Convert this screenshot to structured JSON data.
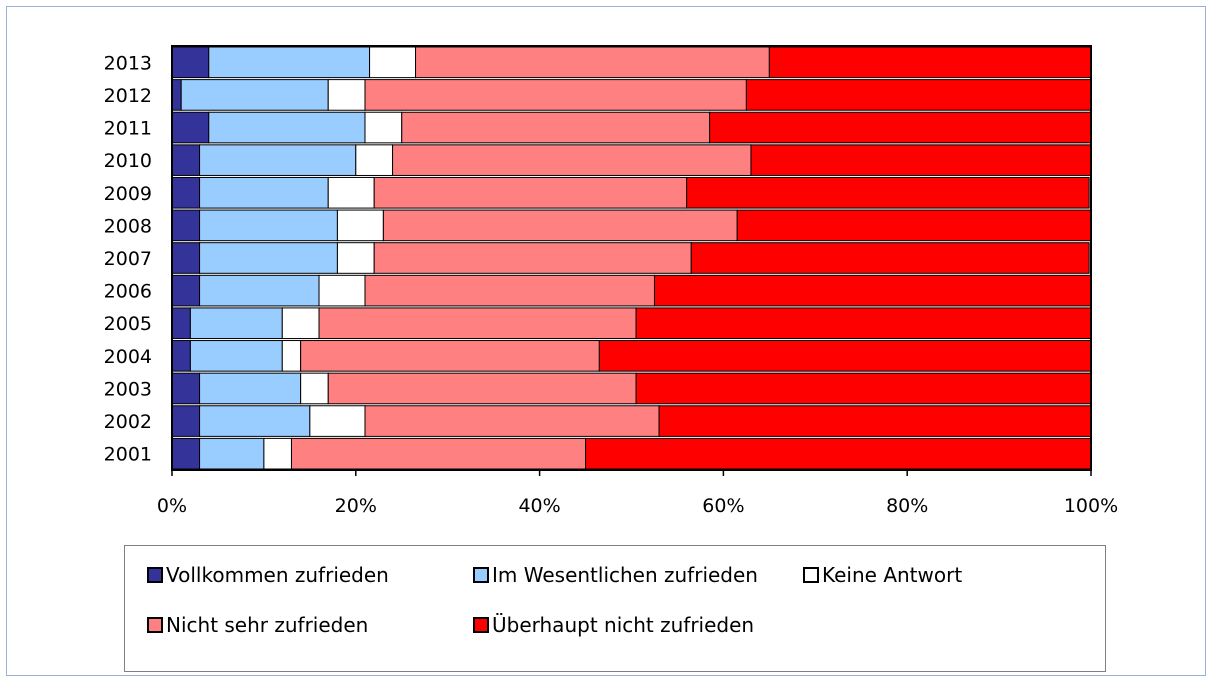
{
  "chart_data": {
    "type": "bar",
    "orientation": "horizontal",
    "stacked": "percent",
    "categories": [
      "2013",
      "2012",
      "2011",
      "2010",
      "2009",
      "2008",
      "2007",
      "2006",
      "2005",
      "2004",
      "2003",
      "2002",
      "2001"
    ],
    "series": [
      {
        "name": "Vollkommen zufrieden",
        "color": "#333399",
        "values": [
          4,
          1,
          4,
          3,
          3,
          3,
          3,
          3,
          2,
          2,
          3,
          3,
          3
        ]
      },
      {
        "name": "Im Wesentlichen zufrieden",
        "color": "#99ccff",
        "values": [
          17.5,
          16,
          17,
          17,
          14,
          15,
          15,
          13,
          10,
          10,
          11,
          12,
          7
        ]
      },
      {
        "name": "Keine Antwort",
        "color": "#ffffff",
        "values": [
          5,
          4,
          4,
          4,
          5,
          5,
          4,
          5,
          4,
          2,
          3,
          6,
          3
        ]
      },
      {
        "name": "Nicht sehr zufrieden",
        "color": "#ff8080",
        "values": [
          38.5,
          41.5,
          33.5,
          39,
          34,
          38.5,
          34.5,
          31.5,
          34.5,
          32.5,
          33.5,
          32,
          32
        ]
      },
      {
        "name": "Überhaupt nicht zufrieden",
        "color": "#ff0000",
        "values": [
          35,
          37.5,
          41.5,
          37,
          43.8,
          38.5,
          43.3,
          47.5,
          49.5,
          53.5,
          49.5,
          47,
          55
        ]
      }
    ],
    "xticks": [
      "0%",
      "20%",
      "40%",
      "60%",
      "80%",
      "100%"
    ],
    "xlim": [
      0,
      100
    ],
    "grid": false,
    "legend_position": "bottom"
  }
}
